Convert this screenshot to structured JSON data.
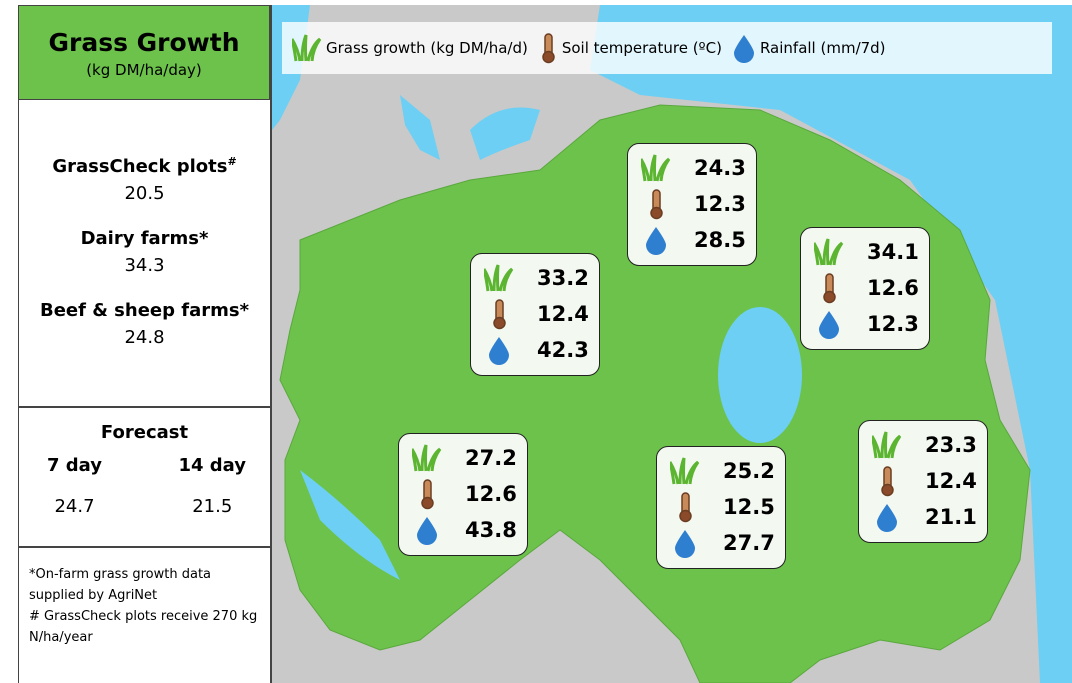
{
  "panel": {
    "title": "Grass Growth",
    "subtitle": "(kg DM/ha/day)",
    "stats": [
      {
        "label": "GrassCheck plots",
        "sup": "#",
        "value": 20.5
      },
      {
        "label": "Dairy farms*",
        "value": 34.3
      },
      {
        "label": "Beef & sheep farms*",
        "value": 24.8
      }
    ],
    "forecast": {
      "title": "Forecast",
      "columns": [
        {
          "label": "7 day",
          "value": 24.7
        },
        {
          "label": "14 day",
          "value": 21.5
        }
      ]
    },
    "footnotes": [
      "*On-farm grass growth data supplied by AgriNet",
      "# GrassCheck plots receive 270 kg N/ha/year"
    ]
  },
  "legend": [
    "Grass growth (kg DM/ha/d)",
    "Soil temperature (ºC)",
    "Rainfall (mm/7d)"
  ],
  "regions": [
    {
      "grass": 24.3,
      "temp": 12.3,
      "rain": 28.5
    },
    {
      "grass": 33.2,
      "temp": 12.4,
      "rain": 42.3
    },
    {
      "grass": 34.1,
      "temp": 12.6,
      "rain": 12.3
    },
    {
      "grass": 27.2,
      "temp": 12.6,
      "rain": 43.8
    },
    {
      "grass": 25.2,
      "temp": 12.5,
      "rain": 27.7
    },
    {
      "grass": 23.3,
      "temp": 12.4,
      "rain": 21.1
    }
  ]
}
